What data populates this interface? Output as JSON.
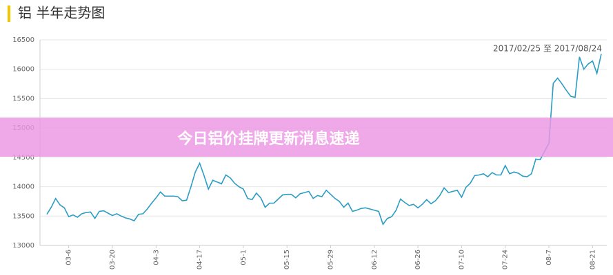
{
  "chart_data": {
    "type": "line",
    "title": "铝 半年走势图",
    "annotation": "2017/02/25 至 2017/08/24",
    "categories": [
      null,
      null,
      null,
      null,
      null,
      "03-6",
      null,
      null,
      null,
      null,
      null,
      null,
      null,
      null,
      null,
      "03-20",
      null,
      null,
      null,
      null,
      null,
      null,
      null,
      null,
      null,
      "04-3",
      null,
      null,
      null,
      null,
      null,
      null,
      null,
      null,
      null,
      "04-17",
      null,
      null,
      null,
      null,
      null,
      null,
      null,
      null,
      null,
      "05-1",
      null,
      null,
      null,
      null,
      null,
      null,
      null,
      null,
      null,
      "05-15",
      null,
      null,
      null,
      null,
      null,
      null,
      null,
      null,
      null,
      "05-29",
      null,
      null,
      null,
      null,
      null,
      null,
      null,
      null,
      null,
      "06-12",
      null,
      null,
      null,
      null,
      null,
      null,
      null,
      null,
      null,
      "06-26",
      null,
      null,
      null,
      null,
      null,
      null,
      null,
      null,
      null,
      "07-10",
      null,
      null,
      null,
      null,
      null,
      null,
      null,
      null,
      null,
      "07-24",
      null,
      null,
      null,
      null,
      null,
      null,
      null,
      null,
      null,
      "08-7",
      null,
      null,
      null,
      null,
      null,
      null,
      null,
      null,
      null,
      "08-21",
      null,
      null
    ],
    "values": [
      13530,
      13650,
      13800,
      13690,
      13640,
      13490,
      13520,
      13480,
      13540,
      13560,
      13570,
      13460,
      13580,
      13590,
      13550,
      13510,
      13540,
      13500,
      13470,
      13450,
      13420,
      13530,
      13540,
      13620,
      13720,
      13810,
      13910,
      13840,
      13840,
      13840,
      13830,
      13760,
      13770,
      14000,
      14250,
      14400,
      14190,
      13960,
      14110,
      14080,
      14050,
      14200,
      14150,
      14060,
      14000,
      13960,
      13800,
      13780,
      13890,
      13810,
      13650,
      13720,
      13720,
      13790,
      13860,
      13870,
      13870,
      13810,
      13880,
      13900,
      13920,
      13800,
      13850,
      13830,
      13940,
      13870,
      13800,
      13750,
      13650,
      13720,
      13580,
      13600,
      13630,
      13640,
      13620,
      13600,
      13580,
      13360,
      13460,
      13490,
      13600,
      13790,
      13730,
      13680,
      13700,
      13640,
      13700,
      13780,
      13710,
      13760,
      13850,
      13980,
      13900,
      13920,
      13940,
      13820,
      13990,
      14060,
      14190,
      14200,
      14220,
      14170,
      14240,
      14200,
      14200,
      14360,
      14220,
      14250,
      14230,
      14180,
      14170,
      14220,
      14470,
      14460,
      14600,
      14740,
      15760,
      15850,
      15750,
      15640,
      15540,
      15520,
      16210,
      16000,
      16090,
      16140,
      15930,
      16260
    ],
    "color": "#2b9cc3",
    "ylim": [
      13000,
      16500
    ],
    "yticks": [
      13000,
      13500,
      14000,
      14500,
      15000,
      15500,
      16000,
      16500
    ],
    "grid": true
  },
  "banner": {
    "text": "今日铝价挂牌更新消息速递"
  }
}
